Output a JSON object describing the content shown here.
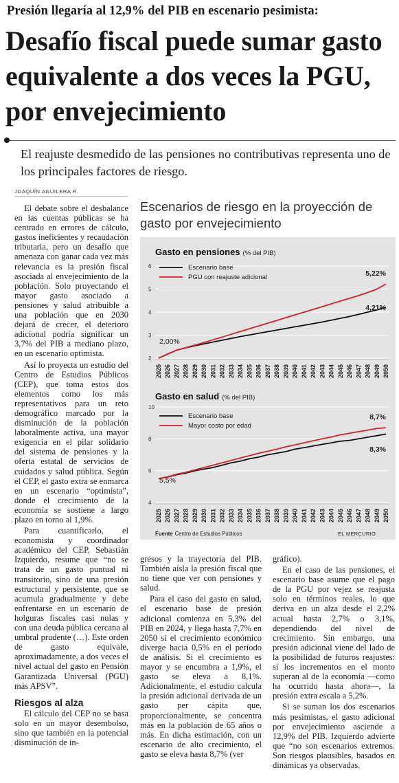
{
  "article": {
    "kicker": "Presión llegaría al 12,9% del PIB en escenario pesimista:",
    "headline": "Desafío fiscal puede sumar gasto equivalente a dos veces la PGU, por envejecimiento",
    "deck": "El reajuste desmedido de las pensiones no contributivas representa uno de los principales factores de riesgo.",
    "byline": "JOAQUÍN AGUILERA R.",
    "col1": {
      "p1": "El debate sobre el desbalance en las cuentas públicas se ha centrado en errores de cálculo, gastos ineficientes y recaudación tributaria, pero un desafío que amenaza con ganar cada vez más relevancia es la presión fiscal asociada al envejecimiento de la población. Solo proyectando el mayor gasto asociado a pensiones y salud atribuible a una población que en 2030 dejará de crecer, el deterioro adicional podría significar un 3,7% del PIB a mediano plazo, en un escenario optimista.",
      "p2": "Así lo proyecta un estudio del Centro de Estudios Públicos (CEP), que toma estos dos elementos como los más representativos para un reto demográfico marcado por la disminución de la población laboralmente activa, una mayor exigencia en el pilar solidario del sistema de pensiones y la oferta estatal de servicios de cuidados y salud pública. Según el CEP, el gasto extra se enmarca en un escenario “optimista”, donde el crecimiento de la economía se sostiene a largo plazo en torno al 1,9%.",
      "p3": "Para cuantificarlo, el economista y coordinador académico del CEP, Sebastián Izquierdo, resume que “no se trata de un gasto puntual ni transitorio, sino de una presión estructural y persistente, que se acumula gradualmente y debe enfrentarse en un escenario de holguras fiscales casi nulas y con una deuda pública cercana al umbral prudente (…). Este orden de gasto equivale, aproximadamente, a dos veces el nivel actual del gasto en Pensión Garantizada Universal (PGU) más APSV”.",
      "subhead": "Riesgos al alza",
      "p4": "El cálculo del CEP no se basa solo en un mayor desembolso, sino que también en la potencial disminución de in-"
    },
    "col2": {
      "p1": "gresos y la trayectoria del PIB. También aísla la presión fiscal que no tiene que ver con pensiones y salud.",
      "p2": "Para el caso del gasto en salud, el escenario base de presión adicional comienza en 5,3% del PIB en 2024, y llega hasta 7,7% en 2050 si el crecimiento económico diverge hacia 0,5% en el período de análisis. Si el crecimiento es mayor y se encumbra a 1,9%, el gasto se eleva a 8,1%. Adicionalmente, el estudio calcula la presión adicional derivada de un gasto per cápita que, proporcionalmente, se concentra más en la población de 65 años o más. En dicha estimación, con un escenario de alto crecimiento, el gasto se eleva hasta 8,7% (ver"
    },
    "col3": {
      "p1": "gráfico).",
      "p2": "En el caso de las pensiones, el escenario base asume que el pago de la PGU por vejez se reajusta solo en términos reales, lo que deriva en un alza desde el 2,2% actual hasta 2,7% o 3,1%, dependiendo del nivel de crecimiento. Sin embargo, una presión adicional viene del lado de la posibilidad de futuros reajustes: si los incrementos en el monto superan al de la economía —como ha ocurrido hasta ahora—, la presión extra escala a 5,2%.",
      "p3": "Si se suman los dos escenarios más pesimistas, el gasto adicional por envejecimiento asciende a 12,9% del PIB. Izquierdo advierte que “no son escenarios extremos. Son riesgos plausibles, basados en dinámicas ya observadas."
    }
  },
  "graphic": {
    "title": "Escenarios de riesgo en la proyección de gasto por envejecimiento",
    "source_label": "Fuente",
    "source": "Centro de Estudios Públicos",
    "brand": "EL MERCURIO",
    "colors": {
      "base": "#111111",
      "alt": "#d6202a",
      "background": "#e4e4e4"
    }
  },
  "chart_data": [
    {
      "type": "line",
      "title": "Gasto en pensiones",
      "subtitle": "(% del PIB)",
      "x": [
        "2025",
        "2026",
        "2027",
        "2028",
        "2029",
        "2030",
        "2031",
        "2032",
        "2033",
        "2034",
        "2035",
        "2036",
        "2037",
        "2038",
        "2039",
        "2040",
        "2041",
        "2042",
        "2043",
        "2044",
        "2045",
        "2046",
        "2047",
        "2048",
        "2049",
        "2050"
      ],
      "yticks": [
        "6",
        "5",
        "4",
        "3",
        "2"
      ],
      "ylim": [
        2,
        6
      ],
      "series": [
        {
          "name": "Escenario base",
          "color": "#111111",
          "values": [
            2.0,
            2.18,
            2.35,
            2.45,
            2.54,
            2.62,
            2.7,
            2.78,
            2.86,
            2.94,
            3.01,
            3.08,
            3.15,
            3.22,
            3.29,
            3.36,
            3.43,
            3.5,
            3.57,
            3.65,
            3.73,
            3.81,
            3.9,
            4.0,
            4.1,
            4.21
          ]
        },
        {
          "name": "PGU con reajuste adicional",
          "color": "#d6202a",
          "values": [
            2.0,
            2.18,
            2.35,
            2.46,
            2.57,
            2.68,
            2.8,
            2.92,
            3.04,
            3.16,
            3.28,
            3.4,
            3.52,
            3.64,
            3.76,
            3.88,
            4.0,
            4.12,
            4.24,
            4.36,
            4.48,
            4.6,
            4.72,
            4.85,
            5.0,
            5.22
          ]
        }
      ],
      "labels": {
        "start": "2,00%",
        "end_base": "4,21%",
        "end_alt": "5,22%"
      }
    },
    {
      "type": "line",
      "title": "Gasto en salud",
      "subtitle": "(% del PIB)",
      "x": [
        "2025",
        "2026",
        "2027",
        "2028",
        "2029",
        "2030",
        "2031",
        "2032",
        "2033",
        "2034",
        "2035",
        "2036",
        "2037",
        "2038",
        "2039",
        "2040",
        "2041",
        "2042",
        "2043",
        "2044",
        "2045",
        "2046",
        "2047",
        "2048",
        "2049",
        "2050"
      ],
      "yticks": [
        "10",
        "8",
        "6",
        "4"
      ],
      "ylim": [
        4,
        10
      ],
      "series": [
        {
          "name": "Escenario base",
          "color": "#111111",
          "values": [
            5.5,
            5.6,
            5.75,
            5.85,
            6.0,
            6.1,
            6.2,
            6.35,
            6.5,
            6.6,
            6.75,
            6.85,
            7.0,
            7.1,
            7.2,
            7.35,
            7.45,
            7.55,
            7.65,
            7.75,
            7.85,
            7.9,
            8.0,
            8.1,
            8.2,
            8.3
          ]
        },
        {
          "name": "Mayor costo por edad",
          "color": "#d6202a",
          "values": [
            5.5,
            5.62,
            5.78,
            5.9,
            6.05,
            6.2,
            6.35,
            6.5,
            6.65,
            6.8,
            6.95,
            7.1,
            7.22,
            7.35,
            7.5,
            7.62,
            7.75,
            7.88,
            8.0,
            8.12,
            8.25,
            8.35,
            8.45,
            8.55,
            8.65,
            8.7
          ]
        }
      ],
      "labels": {
        "start": "5,5%",
        "end_base": "8,3%",
        "end_alt": "8,7%"
      }
    }
  ]
}
